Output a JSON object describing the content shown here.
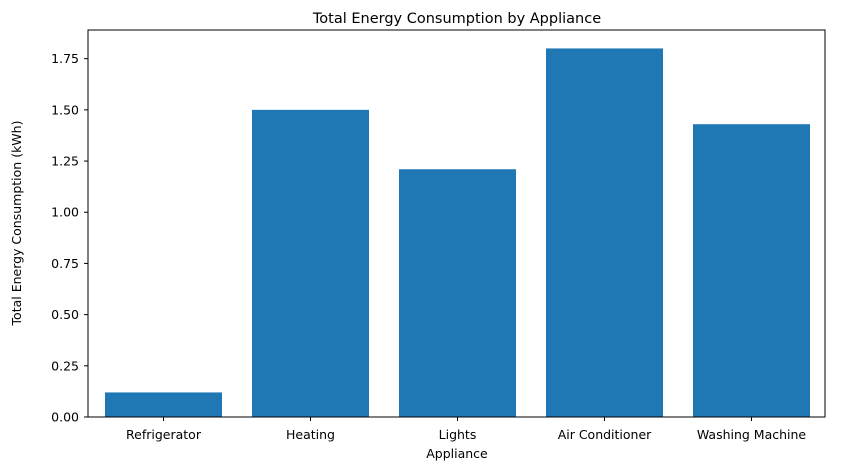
{
  "chart_data": {
    "type": "bar",
    "title": "Total Energy Consumption by Appliance",
    "xlabel": "Appliance",
    "ylabel": "Total Energy Consumption (kWh)",
    "categories": [
      "Refrigerator",
      "Heating",
      "Lights",
      "Air Conditioner",
      "Washing Machine"
    ],
    "values": [
      0.12,
      1.5,
      1.21,
      1.8,
      1.43
    ],
    "ylim": [
      0,
      1.89
    ],
    "yticks": [
      0.0,
      0.25,
      0.5,
      0.75,
      1.0,
      1.25,
      1.5,
      1.75
    ],
    "ytick_labels": [
      "0.00",
      "0.25",
      "0.50",
      "0.75",
      "1.00",
      "1.25",
      "1.50",
      "1.75"
    ],
    "bar_color": "#1f77b4",
    "grid": false,
    "legend": "none"
  }
}
